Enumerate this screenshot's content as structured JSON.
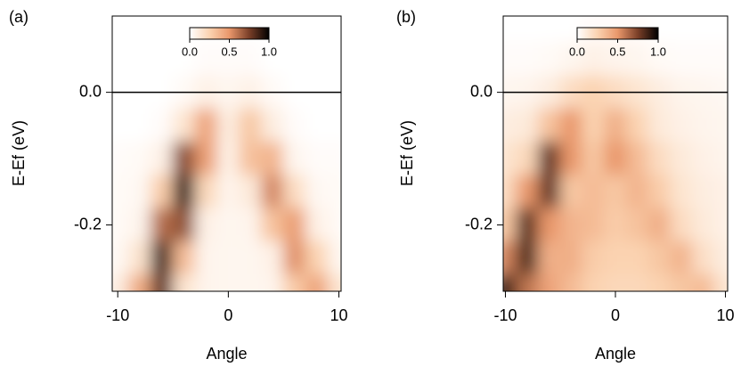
{
  "chart_data": [
    {
      "type": "heatmap",
      "label": "(a)",
      "xlabel": "Angle",
      "ylabel": "E-Ef (eV)",
      "x": [
        -10,
        -8,
        -6,
        -4,
        -2,
        0,
        2,
        4,
        6,
        8,
        10
      ],
      "y": [
        0.1,
        0.05,
        0,
        -0.05,
        -0.1,
        -0.15,
        -0.2,
        -0.25,
        -0.3
      ],
      "z": [
        [
          0,
          0,
          0,
          0,
          0,
          0,
          0,
          0,
          0,
          0,
          0
        ],
        [
          0,
          0,
          0,
          0,
          0.02,
          0.02,
          0.02,
          0,
          0,
          0,
          0
        ],
        [
          0,
          0,
          0,
          0.03,
          0.08,
          0.05,
          0.08,
          0.03,
          0,
          0,
          0
        ],
        [
          0,
          0,
          0.02,
          0.15,
          0.45,
          0.1,
          0.3,
          0.1,
          0.02,
          0,
          0
        ],
        [
          0.02,
          0.03,
          0.08,
          0.72,
          0.47,
          0.08,
          0.33,
          0.38,
          0.05,
          0.02,
          0.02
        ],
        [
          0.03,
          0.04,
          0.28,
          0.9,
          0.22,
          0.06,
          0.12,
          0.55,
          0.2,
          0.04,
          0.03
        ],
        [
          0.03,
          0.06,
          0.62,
          0.7,
          0.08,
          0.05,
          0.06,
          0.32,
          0.48,
          0.08,
          0.03
        ],
        [
          0.04,
          0.16,
          0.87,
          0.35,
          0.06,
          0.05,
          0.05,
          0.08,
          0.52,
          0.25,
          0.05
        ],
        [
          0.1,
          0.42,
          0.8,
          0.15,
          0.06,
          0.05,
          0.05,
          0.06,
          0.28,
          0.45,
          0.15
        ]
      ],
      "xlim": [
        -10.5,
        10.2
      ],
      "ylim": [
        -0.3,
        0.115
      ],
      "xticks": [
        -10,
        0,
        10
      ],
      "yticks": [
        {
          "value": 0,
          "label": "0.0"
        },
        {
          "value": -0.2,
          "label": "-0.2"
        }
      ],
      "hline": 0,
      "colormap": [
        "#ffffff",
        "#fbd3b1",
        "#e9976b",
        "#7a3f28",
        "#000000"
      ],
      "colorbar": {
        "lim": [
          0,
          1
        ],
        "ticks": [
          {
            "value": 0,
            "label": "0.0"
          },
          {
            "value": 0.5,
            "label": "0.5"
          },
          {
            "value": 1,
            "label": "1.0"
          }
        ]
      }
    },
    {
      "type": "heatmap",
      "label": "(b)",
      "xlabel": "Angle",
      "ylabel": "E-Ef (eV)",
      "x": [
        -10,
        -8,
        -6,
        -4,
        -2,
        0,
        2,
        4,
        6,
        8,
        10
      ],
      "y": [
        0.1,
        0.05,
        0,
        -0.05,
        -0.1,
        -0.15,
        -0.2,
        -0.25,
        -0.3
      ],
      "z": [
        [
          0,
          0,
          0,
          0,
          0.02,
          0.02,
          0.02,
          0,
          0,
          0,
          0
        ],
        [
          0.02,
          0.02,
          0.03,
          0.05,
          0.08,
          0.06,
          0.05,
          0.03,
          0.02,
          0.02,
          0.02
        ],
        [
          0.05,
          0.06,
          0.1,
          0.2,
          0.25,
          0.2,
          0.15,
          0.1,
          0.06,
          0.05,
          0.04
        ],
        [
          0.1,
          0.12,
          0.32,
          0.5,
          0.25,
          0.4,
          0.25,
          0.12,
          0.08,
          0.06,
          0.05
        ],
        [
          0.15,
          0.22,
          0.8,
          0.5,
          0.3,
          0.5,
          0.35,
          0.2,
          0.12,
          0.08,
          0.06
        ],
        [
          0.2,
          0.5,
          0.8,
          0.3,
          0.35,
          0.3,
          0.38,
          0.28,
          0.15,
          0.1,
          0.08
        ],
        [
          0.3,
          0.82,
          0.5,
          0.38,
          0.35,
          0.28,
          0.32,
          0.4,
          0.2,
          0.12,
          0.08
        ],
        [
          0.55,
          0.85,
          0.4,
          0.4,
          0.28,
          0.25,
          0.25,
          0.3,
          0.38,
          0.18,
          0.1
        ],
        [
          0.9,
          0.6,
          0.45,
          0.35,
          0.25,
          0.22,
          0.22,
          0.25,
          0.3,
          0.35,
          0.15
        ]
      ],
      "xlim": [
        -10.2,
        10.2
      ],
      "ylim": [
        -0.3,
        0.115
      ],
      "xticks": [
        -10,
        0,
        10
      ],
      "yticks": [
        {
          "value": 0,
          "label": "0.0"
        },
        {
          "value": -0.2,
          "label": "-0.2"
        }
      ],
      "hline": 0,
      "colormap": [
        "#ffffff",
        "#fbd3b1",
        "#e9976b",
        "#7a3f28",
        "#000000"
      ],
      "colorbar": {
        "lim": [
          0,
          1
        ],
        "ticks": [
          {
            "value": 0,
            "label": "0.0"
          },
          {
            "value": 0.5,
            "label": "0.5"
          },
          {
            "value": 1,
            "label": "1.0"
          }
        ]
      }
    }
  ]
}
